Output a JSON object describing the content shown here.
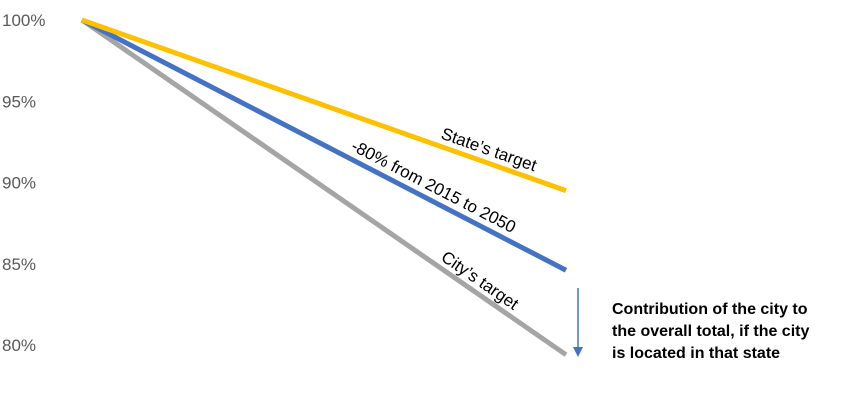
{
  "chart_data": {
    "type": "line",
    "title": "",
    "xlabel": "",
    "ylabel": "",
    "ylim": [
      79.5,
      100.5
    ],
    "y_ticks": [
      "100%",
      "95%",
      "90%",
      "85%",
      "80%"
    ],
    "y_tick_values": [
      100,
      95,
      90,
      85,
      80
    ],
    "grid": false,
    "legend": "none",
    "series": [
      {
        "label": "State’s target",
        "color": "#FFC000",
        "values": [
          100,
          89.5
        ]
      },
      {
        "label": "-80% from 2015 to 2050",
        "color": "#4472C4",
        "values": [
          100,
          84.6
        ]
      },
      {
        "label": "City’s target",
        "color": "#A5A5A5",
        "values": [
          100,
          79.4
        ]
      }
    ],
    "annotation": {
      "lines": [
        "Contribution of the city to",
        "the overall total, if the city",
        "is located in that state"
      ],
      "arrow_color": "#4472C4"
    }
  }
}
